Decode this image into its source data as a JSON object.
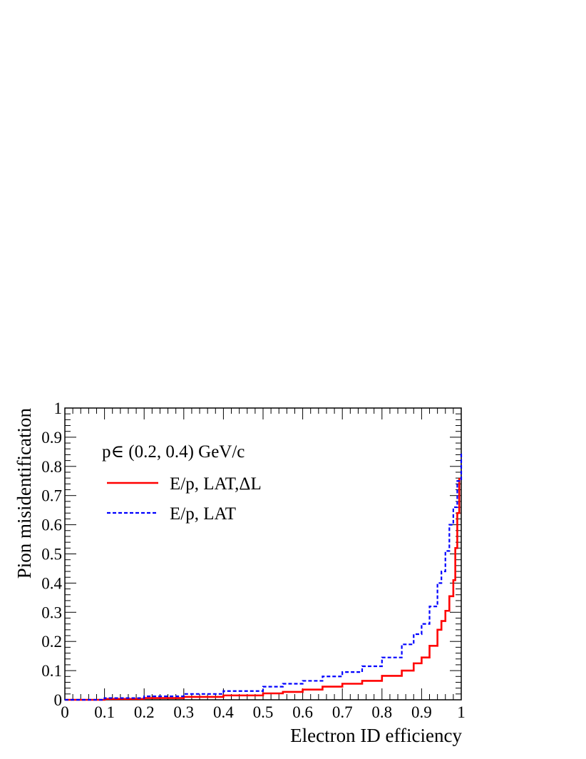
{
  "chart_data": {
    "type": "line",
    "title": "",
    "xlabel": "Electron ID efficiency",
    "ylabel": "Pion misidentification",
    "xlim": [
      0,
      1
    ],
    "ylim": [
      0,
      1
    ],
    "x_ticks": [
      "0",
      "0.1",
      "0.2",
      "0.3",
      "0.4",
      "0.5",
      "0.6",
      "0.7",
      "0.8",
      "0.9",
      "1"
    ],
    "y_ticks": [
      "0",
      "0.1",
      "0.2",
      "0.3",
      "0.4",
      "0.5",
      "0.6",
      "0.7",
      "0.8",
      "0.9",
      "1"
    ],
    "annotation": "p∈ (0.2, 0.4) GeV/c",
    "legend_position": "top-left",
    "grid": false,
    "series": [
      {
        "name": "E/p, LAT,ΔL",
        "color": "#ff0000",
        "style": "solid",
        "x": [
          0,
          0.1,
          0.2,
          0.3,
          0.4,
          0.5,
          0.55,
          0.6,
          0.65,
          0.7,
          0.75,
          0.8,
          0.85,
          0.88,
          0.9,
          0.92,
          0.94,
          0.95,
          0.96,
          0.97,
          0.98,
          0.985,
          0.99,
          0.995
        ],
        "y": [
          0,
          0.003,
          0.006,
          0.01,
          0.015,
          0.022,
          0.027,
          0.035,
          0.045,
          0.055,
          0.065,
          0.082,
          0.1,
          0.125,
          0.145,
          0.185,
          0.24,
          0.27,
          0.305,
          0.355,
          0.41,
          0.52,
          0.64,
          0.76
        ]
      },
      {
        "name": "E/p, LAT",
        "color": "#0000ff",
        "style": "dashed",
        "x": [
          0,
          0.1,
          0.2,
          0.3,
          0.4,
          0.5,
          0.55,
          0.6,
          0.65,
          0.7,
          0.75,
          0.8,
          0.85,
          0.88,
          0.9,
          0.92,
          0.94,
          0.95,
          0.96,
          0.97,
          0.98,
          0.99,
          1.0
        ],
        "y": [
          0,
          0.006,
          0.012,
          0.02,
          0.03,
          0.045,
          0.055,
          0.065,
          0.08,
          0.095,
          0.115,
          0.145,
          0.19,
          0.225,
          0.26,
          0.32,
          0.4,
          0.44,
          0.51,
          0.6,
          0.66,
          0.75,
          0.85
        ]
      }
    ]
  }
}
